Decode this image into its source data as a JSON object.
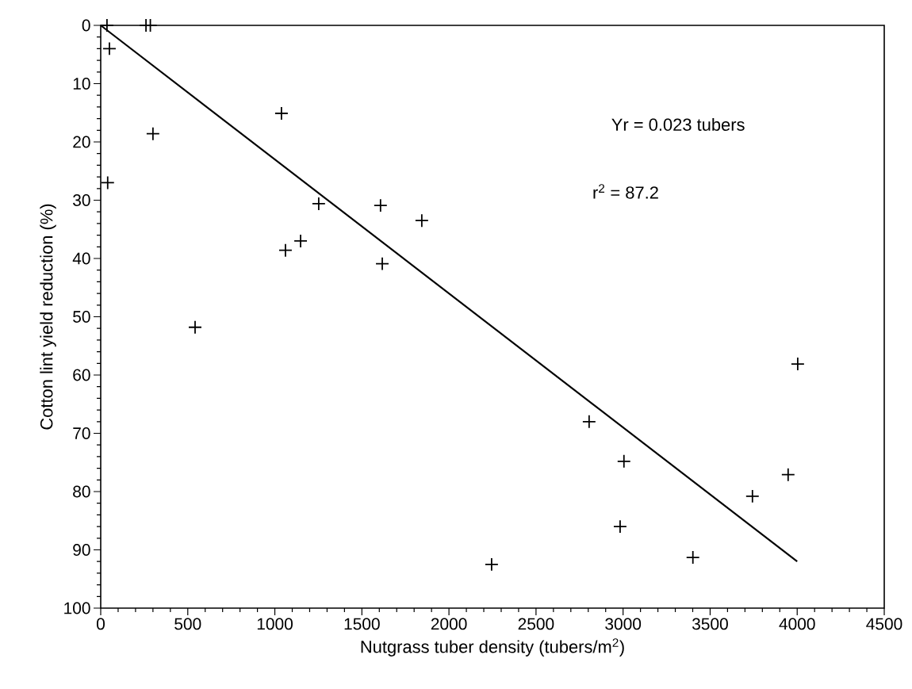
{
  "chart_data": {
    "type": "scatter",
    "xlabel": "Nutgrass tuber density (tubers/m$^{2}$)",
    "ylabel": "Cotton lint yield reduction (%)",
    "xlim": [
      0,
      4500
    ],
    "xticks": [
      0,
      500,
      1000,
      1500,
      2000,
      2500,
      3000,
      3500,
      4000,
      4500
    ],
    "ylim": [
      100,
      0
    ],
    "yticks": [
      0,
      10,
      20,
      30,
      40,
      50,
      60,
      70,
      80,
      90,
      100
    ],
    "annotations": [
      "Yr = 0.023 tubers",
      "r$^{2}$ = 87.2"
    ],
    "series": [
      {
        "marker": "cross",
        "color": "#000000",
        "x": [
          36,
          50,
          40,
          260,
          285,
          300,
          1038,
          1252,
          1607,
          1844,
          1148,
          1061,
          1617,
          542,
          4003,
          2805,
          3005,
          3948,
          3743,
          2983,
          3401,
          2245
        ],
        "values": [
          0,
          4,
          27,
          0,
          0,
          18.6,
          15.1,
          30.6,
          30.9,
          33.5,
          37,
          38.6,
          40.9,
          51.8,
          58.1,
          68,
          74.8,
          77.1,
          80.8,
          86,
          91.3,
          92.5
        ]
      },
      {
        "type": "line",
        "marker": "none",
        "line_style": "solid",
        "color": "#000000",
        "x": [
          0,
          4000
        ],
        "values": [
          0,
          92
        ]
      }
    ]
  }
}
